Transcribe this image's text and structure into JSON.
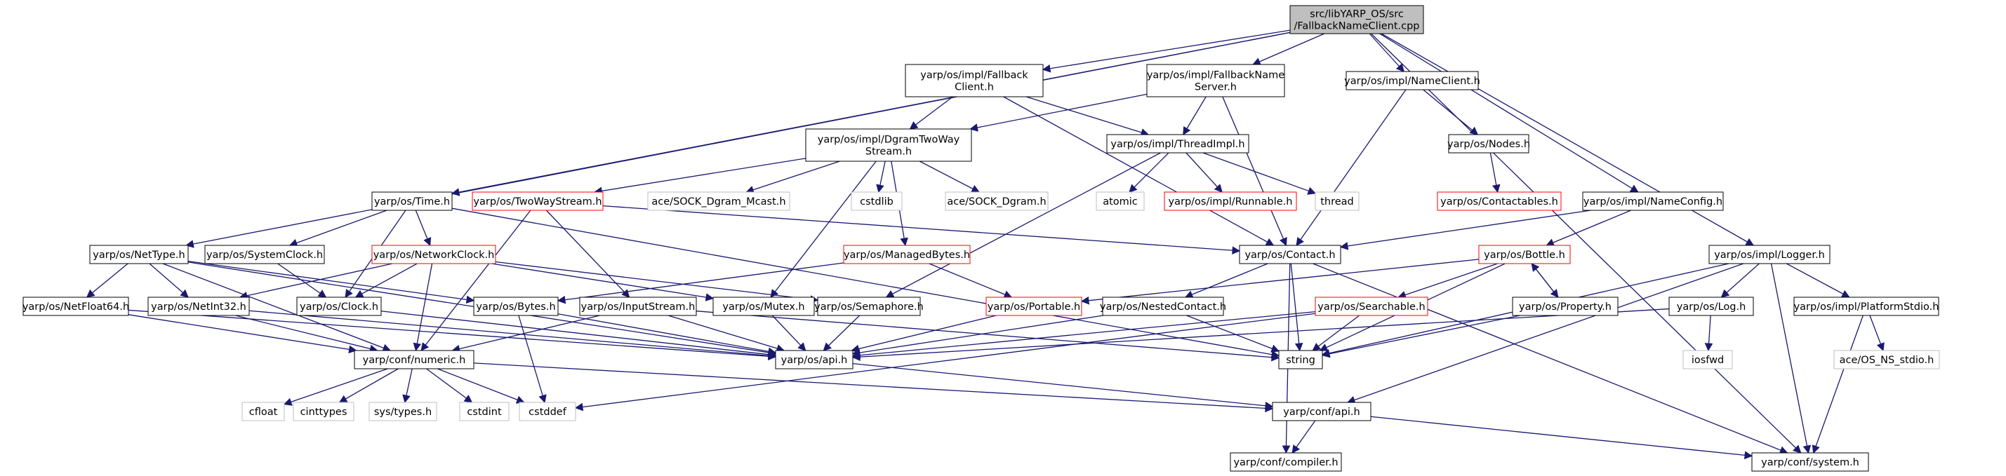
{
  "diagram": {
    "nodes": [
      {
        "id": "root",
        "lines": [
          "src/libYARP_OS/src",
          "/FallbackNameClient.cpp"
        ],
        "style": "root"
      },
      {
        "id": "fnc",
        "lines": [
          "yarp/os/impl/Fallback",
          "Client.h"
        ],
        "style": "normal"
      },
      {
        "id": "fns",
        "lines": [
          "yarp/os/impl/FallbackName",
          "Server.h"
        ],
        "style": "normal"
      },
      {
        "id": "nameclient",
        "lines": [
          "yarp/os/impl/NameClient.h"
        ],
        "style": "normal"
      },
      {
        "id": "dgram",
        "lines": [
          "yarp/os/impl/DgramTwoWay",
          "Stream.h"
        ],
        "style": "normal"
      },
      {
        "id": "threadimpl",
        "lines": [
          "yarp/os/impl/ThreadImpl.h"
        ],
        "style": "normal"
      },
      {
        "id": "nodes",
        "lines": [
          "yarp/os/Nodes.h"
        ],
        "style": "normal"
      },
      {
        "id": "time",
        "lines": [
          "yarp/os/Time.h"
        ],
        "style": "normal"
      },
      {
        "id": "twoway",
        "lines": [
          "yarp/os/TwoWayStream.h"
        ],
        "style": "red"
      },
      {
        "id": "acemcast",
        "lines": [
          "ace/SOCK_Dgram_Mcast.h"
        ],
        "style": "gray"
      },
      {
        "id": "cstdlib",
        "lines": [
          "cstdlib"
        ],
        "style": "gray"
      },
      {
        "id": "acedgram",
        "lines": [
          "ace/SOCK_Dgram.h"
        ],
        "style": "gray"
      },
      {
        "id": "atomic",
        "lines": [
          "atomic"
        ],
        "style": "gray"
      },
      {
        "id": "runnable",
        "lines": [
          "yarp/os/impl/Runnable.h"
        ],
        "style": "red"
      },
      {
        "id": "thread",
        "lines": [
          "thread"
        ],
        "style": "gray"
      },
      {
        "id": "contactables",
        "lines": [
          "yarp/os/Contactables.h"
        ],
        "style": "red"
      },
      {
        "id": "nameconfig",
        "lines": [
          "yarp/os/impl/NameConfig.h"
        ],
        "style": "normal"
      },
      {
        "id": "nettype",
        "lines": [
          "yarp/os/NetType.h"
        ],
        "style": "normal"
      },
      {
        "id": "sysclock",
        "lines": [
          "yarp/os/SystemClock.h"
        ],
        "style": "normal"
      },
      {
        "id": "netclock",
        "lines": [
          "yarp/os/NetworkClock.h"
        ],
        "style": "red"
      },
      {
        "id": "managed",
        "lines": [
          "yarp/os/ManagedBytes.h"
        ],
        "style": "red"
      },
      {
        "id": "contact",
        "lines": [
          "yarp/os/Contact.h"
        ],
        "style": "normal"
      },
      {
        "id": "bottle",
        "lines": [
          "yarp/os/Bottle.h"
        ],
        "style": "red"
      },
      {
        "id": "logger",
        "lines": [
          "yarp/os/impl/Logger.h"
        ],
        "style": "normal"
      },
      {
        "id": "netfloat",
        "lines": [
          "yarp/os/NetFloat64.h"
        ],
        "style": "normal"
      },
      {
        "id": "netint",
        "lines": [
          "yarp/os/NetInt32.h"
        ],
        "style": "normal"
      },
      {
        "id": "clock",
        "lines": [
          "yarp/os/Clock.h"
        ],
        "style": "normal"
      },
      {
        "id": "bytes",
        "lines": [
          "yarp/os/Bytes.h"
        ],
        "style": "normal"
      },
      {
        "id": "instream",
        "lines": [
          "yarp/os/InputStream.h"
        ],
        "style": "normal"
      },
      {
        "id": "mutex",
        "lines": [
          "yarp/os/Mutex.h"
        ],
        "style": "normal"
      },
      {
        "id": "semaphore",
        "lines": [
          "yarp/os/Semaphore.h"
        ],
        "style": "normal"
      },
      {
        "id": "portable",
        "lines": [
          "yarp/os/Portable.h"
        ],
        "style": "red"
      },
      {
        "id": "nested",
        "lines": [
          "yarp/os/NestedContact.h"
        ],
        "style": "normal"
      },
      {
        "id": "searchable",
        "lines": [
          "yarp/os/Searchable.h"
        ],
        "style": "red"
      },
      {
        "id": "property",
        "lines": [
          "yarp/os/Property.h"
        ],
        "style": "normal"
      },
      {
        "id": "log",
        "lines": [
          "yarp/os/Log.h"
        ],
        "style": "normal"
      },
      {
        "id": "platstdio",
        "lines": [
          "yarp/os/impl/PlatformStdio.h"
        ],
        "style": "normal"
      },
      {
        "id": "numeric",
        "lines": [
          "yarp/conf/numeric.h"
        ],
        "style": "normal"
      },
      {
        "id": "osapi",
        "lines": [
          "yarp/os/api.h"
        ],
        "style": "normal"
      },
      {
        "id": "string",
        "lines": [
          "string"
        ],
        "style": "normal"
      },
      {
        "id": "iosfwd",
        "lines": [
          "iosfwd"
        ],
        "style": "gray"
      },
      {
        "id": "aceos",
        "lines": [
          "ace/OS_NS_stdio.h"
        ],
        "style": "gray"
      },
      {
        "id": "cfloat",
        "lines": [
          "cfloat"
        ],
        "style": "gray"
      },
      {
        "id": "cinttypes",
        "lines": [
          "cinttypes"
        ],
        "style": "gray"
      },
      {
        "id": "systypes",
        "lines": [
          "sys/types.h"
        ],
        "style": "gray"
      },
      {
        "id": "cstdint",
        "lines": [
          "cstdint"
        ],
        "style": "gray"
      },
      {
        "id": "cstddef",
        "lines": [
          "cstddef"
        ],
        "style": "gray"
      },
      {
        "id": "confapi",
        "lines": [
          "yarp/conf/api.h"
        ],
        "style": "normal"
      },
      {
        "id": "compiler",
        "lines": [
          "yarp/conf/compiler.h"
        ],
        "style": "normal"
      },
      {
        "id": "system",
        "lines": [
          "yarp/conf/system.h"
        ],
        "style": "normal"
      }
    ],
    "edges": [
      [
        "root",
        "fnc"
      ],
      [
        "root",
        "fns"
      ],
      [
        "root",
        "nameclient"
      ],
      [
        "root",
        "nameconfig"
      ],
      [
        "root",
        "time"
      ],
      [
        "root",
        "nettype"
      ],
      [
        "root",
        "logger"
      ],
      [
        "root",
        "system"
      ],
      [
        "fnc",
        "dgram"
      ],
      [
        "fnc",
        "threadimpl"
      ],
      [
        "fnc",
        "contact"
      ],
      [
        "fns",
        "dgram"
      ],
      [
        "fns",
        "threadimpl"
      ],
      [
        "fns",
        "contact"
      ],
      [
        "nameclient",
        "nodes"
      ],
      [
        "nameclient",
        "contact"
      ],
      [
        "nodes",
        "contactables"
      ],
      [
        "nameconfig",
        "contact"
      ],
      [
        "nameconfig",
        "bottle"
      ],
      [
        "dgram",
        "twoway"
      ],
      [
        "dgram",
        "acemcast"
      ],
      [
        "dgram",
        "cstdlib"
      ],
      [
        "dgram",
        "acedgram"
      ],
      [
        "dgram",
        "managed"
      ],
      [
        "dgram",
        "mutex"
      ],
      [
        "threadimpl",
        "atomic"
      ],
      [
        "threadimpl",
        "runnable"
      ],
      [
        "threadimpl",
        "thread"
      ],
      [
        "threadimpl",
        "semaphore"
      ],
      [
        "time",
        "sysclock"
      ],
      [
        "time",
        "netclock"
      ],
      [
        "time",
        "clock"
      ],
      [
        "time",
        "string"
      ],
      [
        "twoway",
        "contact"
      ],
      [
        "twoway",
        "instream"
      ],
      [
        "twoway",
        "numeric"
      ],
      [
        "nettype",
        "netfloat"
      ],
      [
        "nettype",
        "netint"
      ],
      [
        "nettype",
        "bytes"
      ],
      [
        "nettype",
        "osapi"
      ],
      [
        "nettype",
        "numeric"
      ],
      [
        "sysclock",
        "clock"
      ],
      [
        "netclock",
        "clock"
      ],
      [
        "netclock",
        "netint"
      ],
      [
        "netclock",
        "mutex"
      ],
      [
        "netclock",
        "semaphore"
      ],
      [
        "netclock",
        "numeric"
      ],
      [
        "managed",
        "bytes"
      ],
      [
        "managed",
        "portable"
      ],
      [
        "contact",
        "nested"
      ],
      [
        "contact",
        "string"
      ],
      [
        "contact",
        "compiler"
      ],
      [
        "contact",
        "system"
      ],
      [
        "bottle",
        "portable"
      ],
      [
        "bottle",
        "searchable"
      ],
      [
        "bottle",
        "property"
      ],
      [
        "bottle",
        "string"
      ],
      [
        "property",
        "bottle"
      ],
      [
        "property",
        "string"
      ],
      [
        "logger",
        "log"
      ],
      [
        "logger",
        "platstdio"
      ],
      [
        "logger",
        "confapi"
      ],
      [
        "logger",
        "system"
      ],
      [
        "logger",
        "string"
      ],
      [
        "netfloat",
        "numeric"
      ],
      [
        "netfloat",
        "osapi"
      ],
      [
        "netint",
        "numeric"
      ],
      [
        "netint",
        "osapi"
      ],
      [
        "clock",
        "osapi"
      ],
      [
        "bytes",
        "osapi"
      ],
      [
        "bytes",
        "cstddef"
      ],
      [
        "instream",
        "osapi"
      ],
      [
        "instream",
        "numeric"
      ],
      [
        "instream",
        "string"
      ],
      [
        "mutex",
        "osapi"
      ],
      [
        "semaphore",
        "osapi"
      ],
      [
        "portable",
        "osapi"
      ],
      [
        "nested",
        "osapi"
      ],
      [
        "nested",
        "string"
      ],
      [
        "searchable",
        "osapi"
      ],
      [
        "searchable",
        "string"
      ],
      [
        "searchable",
        "cstddef"
      ],
      [
        "log",
        "osapi"
      ],
      [
        "log",
        "iosfwd"
      ],
      [
        "platstdio",
        "aceos"
      ],
      [
        "platstdio",
        "system"
      ],
      [
        "numeric",
        "cfloat"
      ],
      [
        "numeric",
        "cinttypes"
      ],
      [
        "numeric",
        "systypes"
      ],
      [
        "numeric",
        "cstdint"
      ],
      [
        "numeric",
        "cstddef"
      ],
      [
        "numeric",
        "confapi"
      ],
      [
        "osapi",
        "confapi"
      ],
      [
        "confapi",
        "compiler"
      ],
      [
        "confapi",
        "system"
      ]
    ]
  },
  "colors": {
    "root_fill": "#bfbfbf",
    "normal_border": "#000000",
    "red_border": "#ff0000",
    "gray_border": "#bfbfbf",
    "edge": "#191970",
    "text": "#000000"
  }
}
